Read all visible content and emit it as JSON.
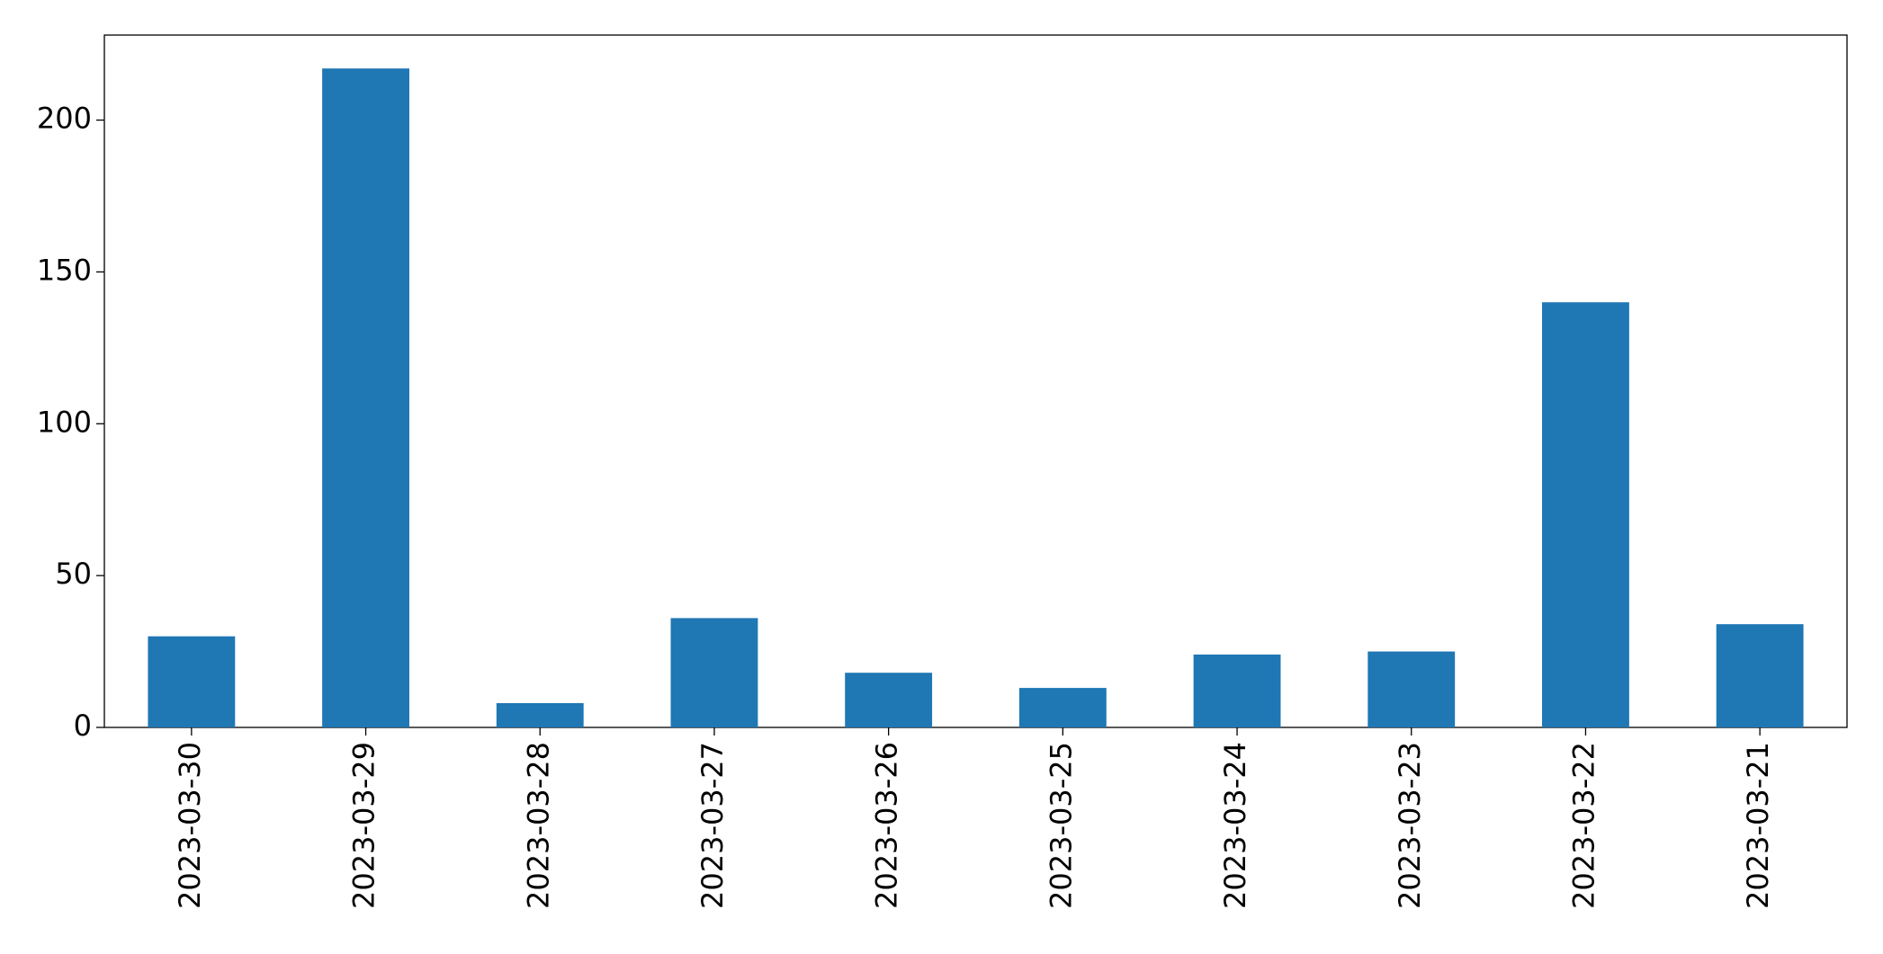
{
  "chart_data": {
    "type": "bar",
    "categories": [
      "2023-03-30",
      "2023-03-29",
      "2023-03-28",
      "2023-03-27",
      "2023-03-26",
      "2023-03-25",
      "2023-03-24",
      "2023-03-23",
      "2023-03-22",
      "2023-03-21"
    ],
    "values": [
      30,
      217,
      8,
      36,
      18,
      13,
      24,
      25,
      140,
      34
    ],
    "color": "#1f77b4",
    "ylim": [
      0,
      228
    ],
    "yticks": [
      0,
      50,
      100,
      150,
      200
    ],
    "grid": false
  }
}
